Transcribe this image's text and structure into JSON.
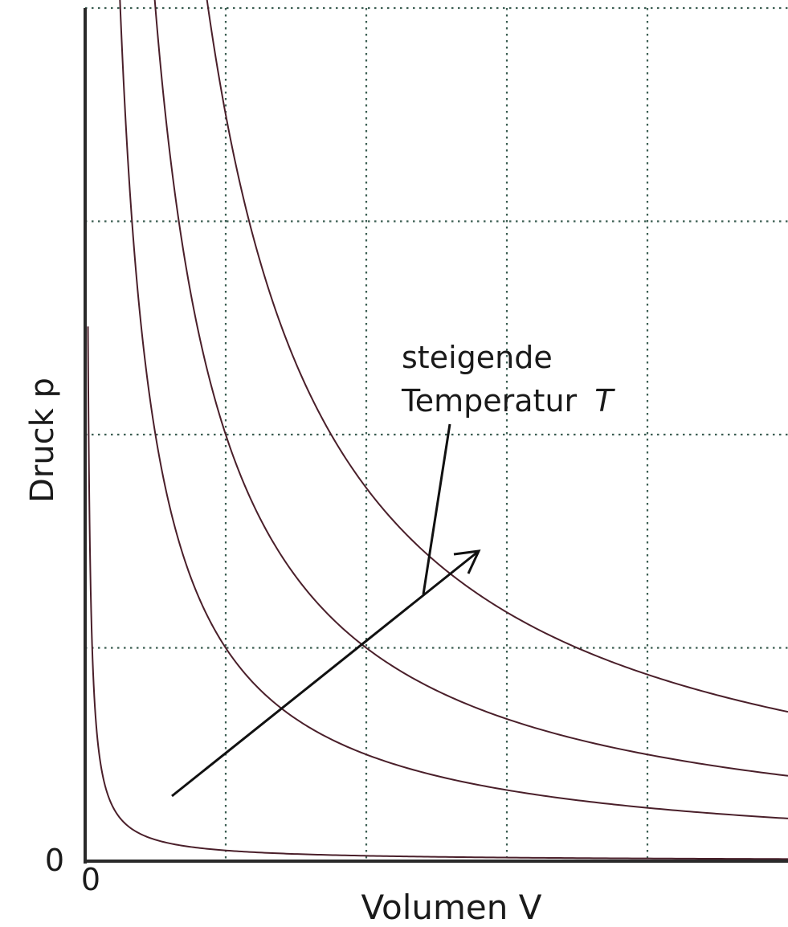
{
  "chart_data": {
    "type": "line",
    "title": "",
    "xlabel": "Volumen V",
    "ylabel": "Druck p",
    "xlim": [
      0,
      5
    ],
    "ylim": [
      0,
      4
    ],
    "grid": true,
    "x_tick_labels": [
      "0"
    ],
    "y_tick_labels": [
      "0"
    ],
    "series": [
      {
        "values": [
          [
            0.1,
            0.5
          ],
          [
            0.5,
            0.1
          ],
          [
            1,
            0.05
          ],
          [
            2,
            0.025
          ],
          [
            3,
            0.017
          ],
          [
            4,
            0.0125
          ],
          [
            5,
            0.01
          ]
        ]
      },
      {
        "values": [
          [
            0.3,
            3.33
          ],
          [
            1,
            1
          ],
          [
            1.5,
            0.667
          ],
          [
            2,
            0.5
          ],
          [
            3,
            0.333
          ],
          [
            4,
            0.25
          ],
          [
            5,
            0.2
          ]
        ]
      },
      {
        "values": [
          [
            0.6,
            3.33
          ],
          [
            1,
            2
          ],
          [
            1.5,
            1.333
          ],
          [
            2,
            1
          ],
          [
            3,
            0.667
          ],
          [
            4,
            0.5
          ],
          [
            5,
            0.4
          ]
        ]
      },
      {
        "values": [
          [
            1,
            3.5
          ],
          [
            1.5,
            2.333
          ],
          [
            2,
            1.75
          ],
          [
            3,
            1.167
          ],
          [
            4,
            0.875
          ],
          [
            5,
            0.7
          ]
        ]
      }
    ],
    "annotations": [
      {
        "text_line1": "steigende",
        "text_line2": "Temperatur",
        "symbol": "T"
      }
    ]
  }
}
